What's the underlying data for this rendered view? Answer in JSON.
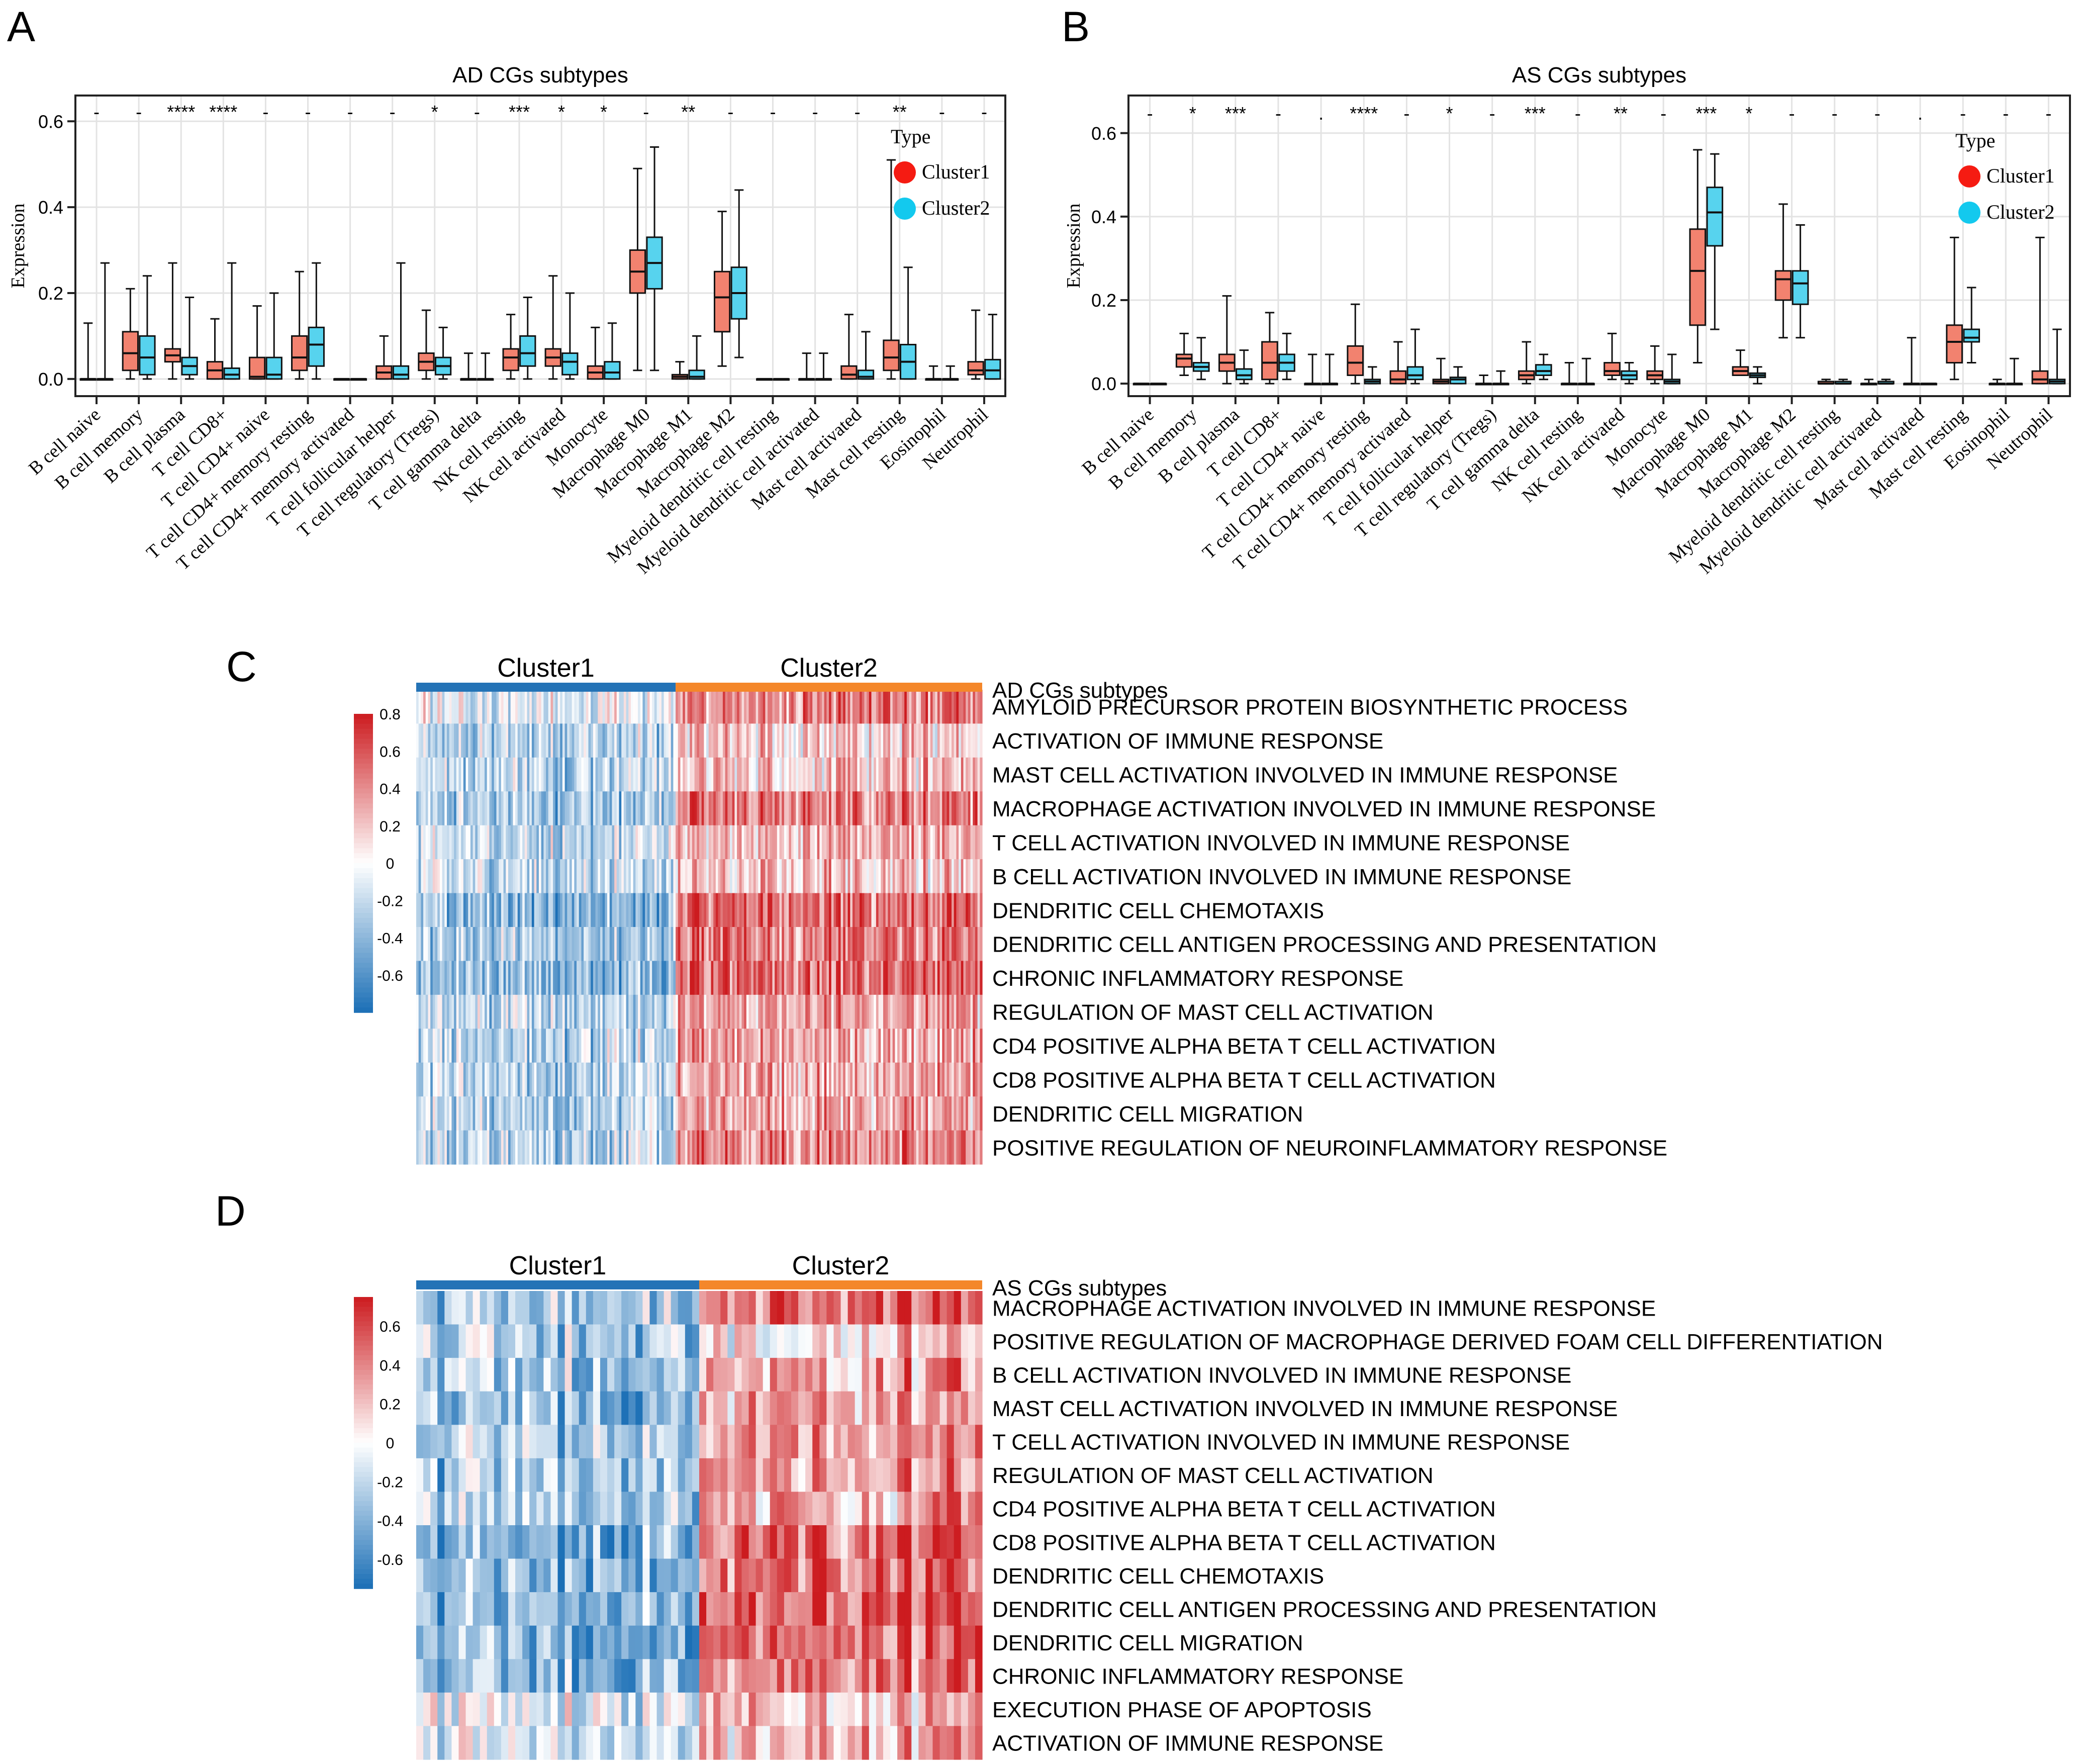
{
  "palette": {
    "cluster1": "#f2826f",
    "cluster2": "#57d3ee",
    "legend_cluster1": "#f51b12",
    "legend_cluster2": "#13c9ee",
    "heat_high": "#cc1b1f",
    "heat_low": "#1b6fb6",
    "bar_cluster1": "#2473b6",
    "bar_cluster2": "#f4872a"
  },
  "chart_data": [
    {
      "panel": "A",
      "type": "boxplot",
      "title": "AD CGs subtypes",
      "ylabel": "Expression",
      "ylim": [
        -0.04,
        0.66
      ],
      "yticks": [
        "0.0",
        "0.2",
        "0.4",
        "0.6"
      ],
      "ytick_values": [
        0,
        0.2,
        0.4,
        0.6
      ],
      "legend": {
        "title": "Type",
        "entries": [
          "Cluster1",
          "Cluster2"
        ],
        "position": "top-right"
      },
      "categories": [
        "B cell naive",
        "B cell memory",
        "B cell plasma",
        "T cell CD8+",
        "T cell CD4+ naive",
        "T cell CD4+ memory resting",
        "T cell CD4+ memory activated",
        "T cell follicular helper",
        "T cell regulatory (Tregs)",
        "T cell gamma delta",
        "NK cell resting",
        "NK cell activated",
        "Monocyte",
        "Macrophage M0",
        "Macrophage M1",
        "Macrophage M2",
        "Myeloid dendritic cell resting",
        "Myeloid dendritic cell activated",
        "Mast cell activated",
        "Mast cell resting",
        "Eosinophil",
        "Neutrophil"
      ],
      "significance": [
        "-",
        "-",
        "****",
        "****",
        "-",
        "-",
        "-",
        "-",
        "*",
        "-",
        "***",
        "*",
        "*",
        "-",
        "**",
        "-",
        "-",
        "-",
        "-",
        "**",
        "-",
        "-"
      ],
      "series": [
        {
          "name": "Cluster1",
          "stats": [
            [
              0,
              0,
              0,
              0,
              0.13
            ],
            [
              0,
              0.02,
              0.06,
              0.11,
              0.21
            ],
            [
              0,
              0.04,
              0.055,
              0.07,
              0.27
            ],
            [
              0,
              0,
              0.02,
              0.04,
              0.14
            ],
            [
              0,
              0,
              0.005,
              0.05,
              0.17
            ],
            [
              0,
              0.02,
              0.05,
              0.1,
              0.25
            ],
            [
              0,
              0,
              0,
              0,
              0
            ],
            [
              0,
              0,
              0.015,
              0.03,
              0.1
            ],
            [
              0,
              0.02,
              0.04,
              0.06,
              0.16
            ],
            [
              0,
              0,
              0,
              0,
              0.06
            ],
            [
              0,
              0.02,
              0.05,
              0.07,
              0.15
            ],
            [
              0,
              0.03,
              0.05,
              0.07,
              0.24
            ],
            [
              0,
              0,
              0.015,
              0.03,
              0.12
            ],
            [
              0.02,
              0.2,
              0.25,
              0.3,
              0.49
            ],
            [
              0,
              0,
              0.005,
              0.01,
              0.04
            ],
            [
              0.03,
              0.11,
              0.19,
              0.25,
              0.39
            ],
            [
              0,
              0,
              0,
              0,
              0
            ],
            [
              0,
              0,
              0,
              0,
              0.06
            ],
            [
              0,
              0,
              0.01,
              0.03,
              0.15
            ],
            [
              0,
              0.02,
              0.05,
              0.09,
              0.51
            ],
            [
              0,
              0,
              0,
              0,
              0.03
            ],
            [
              0,
              0.01,
              0.02,
              0.04,
              0.16
            ]
          ]
        },
        {
          "name": "Cluster2",
          "stats": [
            [
              0,
              0,
              0,
              0,
              0.27
            ],
            [
              0,
              0.01,
              0.05,
              0.1,
              0.24
            ],
            [
              0,
              0.01,
              0.03,
              0.05,
              0.19
            ],
            [
              0,
              0,
              0.01,
              0.025,
              0.27
            ],
            [
              0,
              0,
              0.01,
              0.05,
              0.2
            ],
            [
              0,
              0.03,
              0.08,
              0.12,
              0.27
            ],
            [
              0,
              0,
              0,
              0,
              0
            ],
            [
              0,
              0,
              0.01,
              0.03,
              0.27
            ],
            [
              0,
              0.01,
              0.03,
              0.05,
              0.12
            ],
            [
              0,
              0,
              0,
              0,
              0.06
            ],
            [
              0,
              0.03,
              0.06,
              0.1,
              0.19
            ],
            [
              0,
              0.01,
              0.04,
              0.06,
              0.2
            ],
            [
              0,
              0,
              0.015,
              0.04,
              0.13
            ],
            [
              0.02,
              0.21,
              0.27,
              0.33,
              0.54
            ],
            [
              0,
              0,
              0.005,
              0.02,
              0.1
            ],
            [
              0.05,
              0.14,
              0.2,
              0.26,
              0.44
            ],
            [
              0,
              0,
              0,
              0,
              0
            ],
            [
              0,
              0,
              0,
              0,
              0.06
            ],
            [
              0,
              0,
              0.005,
              0.02,
              0.11
            ],
            [
              0,
              0,
              0.04,
              0.08,
              0.26
            ],
            [
              0,
              0,
              0,
              0,
              0.03
            ],
            [
              0,
              0,
              0.02,
              0.045,
              0.15
            ]
          ]
        }
      ]
    },
    {
      "panel": "B",
      "type": "boxplot",
      "title": "AS CGs subtypes",
      "ylabel": "Expression",
      "ylim": [
        -0.03,
        0.69
      ],
      "yticks": [
        "0.0",
        "0.2",
        "0.4",
        "0.6"
      ],
      "ytick_values": [
        0,
        0.2,
        0.4,
        0.6
      ],
      "legend": {
        "title": "Type",
        "entries": [
          "Cluster1",
          "Cluster2"
        ],
        "position": "top-right"
      },
      "categories": [
        "B cell naive",
        "B cell memory",
        "B cell plasma",
        "T cell CD8+",
        "T cell CD4+ naive",
        "T cell CD4+ memory resting",
        "T cell CD4+ memory activated",
        "T cell follicular helper",
        "T cell regulatory (Tregs)",
        "T cell gamma delta",
        "NK cell resting",
        "NK cell activated",
        "Monocyte",
        "Macrophage M0",
        "Macrophage M1",
        "Macrophage M2",
        "Myeloid dendritic cell resting",
        "Myeloid dendritic cell activated",
        "Mast cell activated",
        "Mast cell resting",
        "Eosinophil",
        "Neutrophil"
      ],
      "significance": [
        "-",
        "*",
        "***",
        "-",
        ".",
        "****",
        "-",
        "*",
        "-",
        "***",
        "-",
        "**",
        "-",
        "***",
        "*",
        "-",
        "-",
        "-",
        ".",
        "-",
        "-",
        "-"
      ],
      "series": [
        {
          "name": "Cluster1",
          "stats": [
            [
              0,
              0,
              0,
              0,
              0
            ],
            [
              0.02,
              0.04,
              0.06,
              0.07,
              0.12
            ],
            [
              0,
              0.03,
              0.05,
              0.07,
              0.21
            ],
            [
              0,
              0.01,
              0.05,
              0.1,
              0.17
            ],
            [
              0,
              0,
              0,
              0,
              0.07
            ],
            [
              0,
              0.02,
              0.05,
              0.09,
              0.19
            ],
            [
              0,
              0,
              0.01,
              0.03,
              0.1
            ],
            [
              0,
              0,
              0.005,
              0.01,
              0.06
            ],
            [
              0,
              0,
              0,
              0,
              0.02
            ],
            [
              0,
              0.01,
              0.02,
              0.03,
              0.1
            ],
            [
              0,
              0,
              0,
              0,
              0.05
            ],
            [
              0.01,
              0.02,
              0.03,
              0.05,
              0.12
            ],
            [
              0,
              0.01,
              0.02,
              0.03,
              0.09
            ],
            [
              0.05,
              0.14,
              0.27,
              0.37,
              0.56
            ],
            [
              0.02,
              0.02,
              0.03,
              0.04,
              0.08
            ],
            [
              0.11,
              0.2,
              0.25,
              0.27,
              0.43
            ],
            [
              0,
              0,
              0,
              0.005,
              0.01
            ],
            [
              0,
              0,
              0,
              0,
              0.01
            ],
            [
              0,
              0,
              0,
              0,
              0.11
            ],
            [
              0.01,
              0.05,
              0.1,
              0.14,
              0.35
            ],
            [
              0,
              0,
              0,
              0,
              0.01
            ],
            [
              0,
              0,
              0.01,
              0.03,
              0.35
            ]
          ]
        },
        {
          "name": "Cluster2",
          "stats": [
            [
              0,
              0,
              0,
              0,
              0
            ],
            [
              0.01,
              0.03,
              0.04,
              0.05,
              0.11
            ],
            [
              0,
              0.01,
              0.02,
              0.035,
              0.08
            ],
            [
              0.01,
              0.03,
              0.05,
              0.07,
              0.12
            ],
            [
              0,
              0,
              0,
              0,
              0.07
            ],
            [
              0,
              0,
              0.005,
              0.01,
              0.04
            ],
            [
              0,
              0.01,
              0.02,
              0.04,
              0.13
            ],
            [
              0,
              0,
              0.01,
              0.015,
              0.04
            ],
            [
              0,
              0,
              0,
              0,
              0.03
            ],
            [
              0.01,
              0.02,
              0.03,
              0.045,
              0.07
            ],
            [
              0,
              0,
              0,
              0,
              0.06
            ],
            [
              0,
              0.01,
              0.02,
              0.03,
              0.05
            ],
            [
              0,
              0,
              0.005,
              0.01,
              0.07
            ],
            [
              0.13,
              0.33,
              0.41,
              0.47,
              0.55
            ],
            [
              0,
              0.015,
              0.02,
              0.025,
              0.04
            ],
            [
              0.11,
              0.19,
              0.24,
              0.27,
              0.38
            ],
            [
              0,
              0,
              0,
              0.005,
              0.01
            ],
            [
              0,
              0,
              0,
              0.005,
              0.01
            ],
            [
              0,
              0,
              0,
              0,
              0
            ],
            [
              0.05,
              0.1,
              0.11,
              0.13,
              0.23
            ],
            [
              0,
              0,
              0,
              0,
              0.06
            ],
            [
              0,
              0,
              0.005,
              0.01,
              0.13
            ]
          ]
        }
      ]
    },
    {
      "panel": "C",
      "type": "heatmap",
      "annotation_label": "AD CGs subtypes",
      "columns": {
        "cluster1": 110,
        "cluster2": 130
      },
      "cluster_labels": [
        "Cluster1",
        "Cluster2"
      ],
      "colorbar": {
        "min": -0.8,
        "max": 0.8,
        "ticks": [
          "0.8",
          "0.6",
          "0.4",
          "0.2",
          "0",
          "-0.2",
          "-0.4",
          "-0.6"
        ],
        "tick_values": [
          0.8,
          0.6,
          0.4,
          0.2,
          0,
          -0.2,
          -0.4,
          -0.6
        ]
      },
      "rows": [
        "AMYLOID PRECURSOR PROTEIN BIOSYNTHETIC PROCESS",
        "ACTIVATION OF IMMUNE RESPONSE",
        "MAST CELL ACTIVATION INVOLVED IN IMMUNE RESPONSE",
        "MACROPHAGE ACTIVATION INVOLVED IN IMMUNE RESPONSE",
        "T CELL ACTIVATION INVOLVED IN IMMUNE RESPONSE",
        "B CELL ACTIVATION INVOLVED IN IMMUNE RESPONSE",
        "DENDRITIC CELL CHEMOTAXIS",
        "DENDRITIC CELL ANTIGEN PROCESSING AND PRESENTATION",
        "CHRONIC INFLAMMATORY RESPONSE",
        "REGULATION OF MAST CELL ACTIVATION",
        "CD4 POSITIVE ALPHA BETA T CELL ACTIVATION",
        "CD8 POSITIVE ALPHA BETA T CELL ACTIVATION",
        "DENDRITIC CELL MIGRATION",
        "POSITIVE REGULATION OF NEUROINFLAMMATORY RESPONSE"
      ],
      "row_means_cluster1": [
        -0.1,
        -0.25,
        -0.2,
        -0.3,
        -0.2,
        -0.2,
        -0.4,
        -0.3,
        -0.4,
        -0.25,
        -0.25,
        -0.25,
        -0.25,
        -0.25
      ],
      "row_means_cluster2": [
        0.45,
        0.15,
        0.2,
        0.45,
        0.25,
        0.2,
        0.5,
        0.45,
        0.5,
        0.3,
        0.3,
        0.3,
        0.3,
        0.4
      ]
    },
    {
      "panel": "D",
      "type": "heatmap",
      "annotation_label": "AS CGs subtypes",
      "columns": {
        "cluster1": 40,
        "cluster2": 40
      },
      "cluster_labels": [
        "Cluster1",
        "Cluster2"
      ],
      "colorbar": {
        "min": -0.75,
        "max": 0.75,
        "ticks": [
          "0.6",
          "0.4",
          "0.2",
          "0",
          "-0.2",
          "-0.4",
          "-0.6"
        ],
        "tick_values": [
          0.6,
          0.4,
          0.2,
          0,
          -0.2,
          -0.4,
          -0.6
        ]
      },
      "rows": [
        "MACROPHAGE ACTIVATION INVOLVED IN IMMUNE RESPONSE",
        "POSITIVE REGULATION OF MACROPHAGE DERIVED FOAM CELL DIFFERENTIATION",
        "B CELL ACTIVATION INVOLVED IN IMMUNE RESPONSE",
        "MAST CELL ACTIVATION INVOLVED IN IMMUNE RESPONSE",
        "T CELL ACTIVATION INVOLVED IN IMMUNE RESPONSE",
        "REGULATION OF MAST CELL ACTIVATION",
        "CD4 POSITIVE ALPHA BETA T CELL ACTIVATION",
        "CD8 POSITIVE ALPHA BETA T CELL ACTIVATION",
        "DENDRITIC CELL CHEMOTAXIS",
        "DENDRITIC CELL ANTIGEN PROCESSING AND PRESENTATION",
        "DENDRITIC CELL MIGRATION",
        "CHRONIC INFLAMMATORY RESPONSE",
        "EXECUTION PHASE OF APOPTOSIS",
        "ACTIVATION OF IMMUNE RESPONSE"
      ],
      "row_means_cluster1": [
        -0.3,
        -0.3,
        -0.3,
        -0.35,
        -0.3,
        -0.3,
        -0.3,
        -0.4,
        -0.4,
        -0.4,
        -0.4,
        -0.4,
        -0.1,
        -0.2
      ],
      "row_means_cluster2": [
        0.5,
        0.1,
        0.3,
        0.3,
        0.3,
        0.3,
        0.3,
        0.45,
        0.5,
        0.55,
        0.45,
        0.45,
        0.2,
        0.25
      ]
    }
  ]
}
